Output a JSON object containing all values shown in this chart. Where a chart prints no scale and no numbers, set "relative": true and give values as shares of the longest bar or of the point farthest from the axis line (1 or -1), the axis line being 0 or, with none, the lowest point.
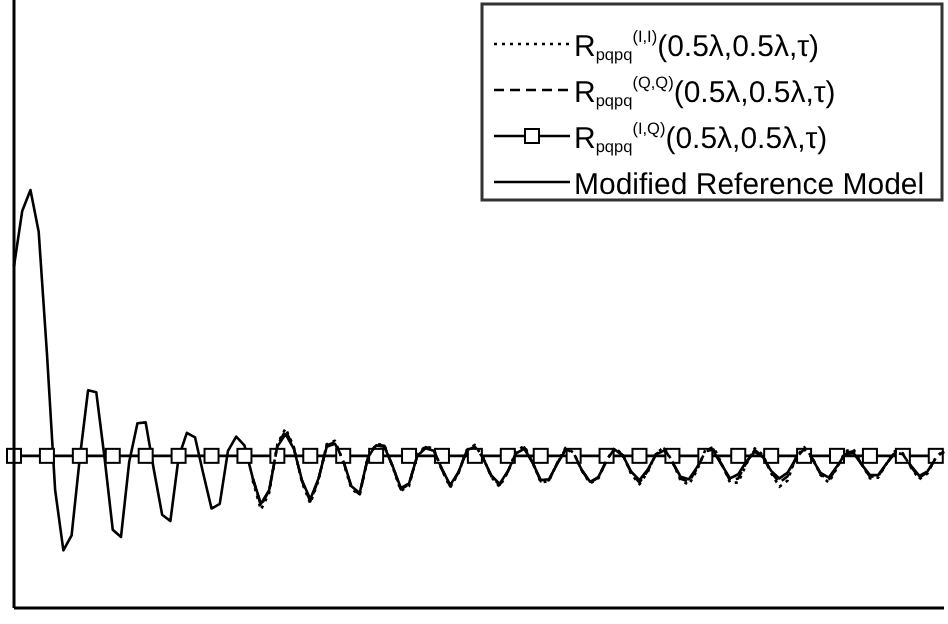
{
  "chart_data": {
    "type": "line",
    "relative": true,
    "legend": "top right",
    "categories": [
      null,
      null,
      null,
      null,
      null,
      null,
      null,
      null,
      null,
      null,
      null,
      null,
      null,
      null,
      null,
      null,
      null,
      null,
      null,
      null,
      null,
      null,
      null,
      null,
      null,
      null,
      null,
      null,
      null,
      null,
      null,
      null,
      null,
      null,
      null,
      null,
      null,
      null,
      null,
      null,
      null,
      null,
      null,
      null,
      null,
      null,
      null,
      null,
      null,
      null,
      null,
      null,
      null,
      null,
      null,
      null,
      null,
      null,
      null,
      null,
      null,
      null,
      null,
      null,
      null,
      null,
      null,
      null,
      null,
      null,
      null,
      null,
      null,
      null,
      null,
      null,
      null,
      null,
      null,
      null,
      null,
      null,
      null,
      null,
      null,
      null,
      null,
      null,
      null,
      null,
      null,
      null,
      null,
      null,
      null,
      null,
      null,
      null,
      null,
      null,
      null,
      null,
      null,
      null,
      null,
      null,
      null,
      null,
      null,
      null,
      null,
      null,
      null,
      null
    ],
    "series": [
      {
        "name": "R$_{pqpq}$$^{(I,I)}$(0.5λ,0.5λ,τ)",
        "color": "#000000",
        "line_style": "dotted",
        "marker": "none",
        "values": [
          null,
          null,
          null,
          null,
          null,
          null,
          null,
          null,
          null,
          null,
          null,
          null,
          null,
          null,
          null,
          null,
          null,
          null,
          null,
          null,
          null,
          null,
          null,
          null,
          null,
          null,
          null,
          null,
          null,
          0.305,
          0.235,
          0.275,
          0.392,
          0.43,
          0.385,
          0.3,
          0.25,
          0.305,
          0.392,
          0.4,
          0.35,
          0.285,
          0.27,
          0.36,
          0.392,
          0.39,
          0.338,
          0.28,
          0.292,
          0.366,
          0.388,
          0.38,
          0.33,
          0.288,
          0.322,
          0.378,
          0.39,
          0.36,
          0.313,
          0.29,
          0.325,
          0.375,
          0.388,
          0.35,
          0.3,
          0.304,
          0.347,
          0.383,
          0.372,
          0.328,
          0.298,
          0.31,
          0.354,
          0.384,
          0.366,
          0.32,
          0.296,
          0.325,
          0.37,
          0.385,
          0.35,
          0.305,
          0.295,
          0.33,
          0.378,
          0.385,
          0.345,
          0.3,
          0.3,
          0.345,
          0.382,
          0.366,
          0.322,
          0.29,
          0.305,
          0.36,
          0.385,
          0.36,
          0.318,
          0.3,
          0.335,
          0.375,
          0.38,
          0.345,
          0.31,
          0.312,
          0.345,
          0.375,
          0.37,
          0.336,
          0.308,
          0.322,
          0.36,
          0.378
        ]
      },
      {
        "name": "R$_{pqpq}$$^{(Q,Q)}$(0.5λ,0.5λ,τ)",
        "color": "#000000",
        "line_style": "dashed",
        "marker": "none",
        "values": [
          null,
          null,
          null,
          null,
          null,
          null,
          null,
          null,
          null,
          null,
          null,
          null,
          null,
          null,
          null,
          null,
          null,
          null,
          null,
          null,
          null,
          null,
          null,
          null,
          null,
          null,
          null,
          null,
          null,
          0.31,
          0.245,
          0.28,
          0.388,
          0.425,
          0.383,
          0.303,
          0.255,
          0.308,
          0.389,
          0.397,
          0.352,
          0.288,
          0.272,
          0.36,
          0.391,
          0.388,
          0.339,
          0.284,
          0.296,
          0.365,
          0.385,
          0.378,
          0.331,
          0.291,
          0.324,
          0.377,
          0.386,
          0.359,
          0.315,
          0.294,
          0.326,
          0.372,
          0.384,
          0.349,
          0.303,
          0.306,
          0.346,
          0.38,
          0.371,
          0.329,
          0.3,
          0.312,
          0.353,
          0.382,
          0.365,
          0.323,
          0.3,
          0.328,
          0.368,
          0.381,
          0.35,
          0.309,
          0.302,
          0.334,
          0.375,
          0.379,
          0.343,
          0.305,
          0.31,
          0.348,
          0.378,
          0.363,
          0.325,
          0.3,
          0.315,
          0.358,
          0.38,
          0.358,
          0.32,
          0.306,
          0.337,
          0.371,
          0.375,
          0.344,
          0.314,
          0.315,
          0.345,
          0.372,
          0.368,
          0.338,
          0.312,
          0.325,
          0.359,
          0.375
        ]
      },
      {
        "name": "R$_{pqpq}$$^{(I,Q)}$(0.5λ,0.5λ,τ)",
        "color": "#000000",
        "line_style": "solid",
        "marker": "square",
        "values": [
          0.364,
          null,
          null,
          null,
          0.364,
          null,
          null,
          null,
          0.364,
          null,
          null,
          null,
          0.364,
          null,
          null,
          null,
          0.364,
          null,
          null,
          null,
          0.364,
          null,
          null,
          null,
          0.364,
          null,
          null,
          null,
          0.364,
          null,
          null,
          null,
          0.364,
          null,
          null,
          null,
          0.364,
          null,
          null,
          null,
          0.364,
          null,
          null,
          null,
          0.364,
          null,
          null,
          null,
          0.364,
          null,
          null,
          null,
          0.364,
          null,
          null,
          null,
          0.364,
          null,
          null,
          null,
          0.364,
          null,
          null,
          null,
          0.364,
          null,
          null,
          null,
          0.364,
          null,
          null,
          null,
          0.364,
          null,
          null,
          null,
          0.364,
          null,
          null,
          null,
          0.364,
          null,
          null,
          null,
          0.364,
          null,
          null,
          null,
          0.364,
          null,
          null,
          null,
          0.364,
          null,
          null,
          null,
          0.364,
          null,
          null,
          null,
          0.364,
          null,
          null,
          null,
          0.364,
          null,
          null,
          null,
          0.364,
          null,
          null,
          null,
          0.364,
          null
        ]
      },
      {
        "name": "Modified Reference Model",
        "color": "#000000",
        "line_style": "solid",
        "marker": "none",
        "values": [
          0.818,
          0.95,
          1.0,
          0.9,
          0.61,
          0.282,
          0.138,
          0.174,
          0.36,
          0.521,
          0.516,
          0.36,
          0.187,
          0.17,
          0.35,
          0.442,
          0.444,
          0.33,
          0.223,
          0.208,
          0.36,
          0.419,
          0.408,
          0.321,
          0.238,
          0.249,
          0.376,
          0.41,
          0.389,
          0.312,
          0.249,
          0.282,
          0.386,
          0.416,
          0.381,
          0.305,
          0.26,
          0.31,
          0.386,
          0.393,
          0.353,
          0.291,
          0.275,
          0.36,
          0.389,
          0.386,
          0.34,
          0.287,
          0.298,
          0.364,
          0.382,
          0.376,
          0.333,
          0.294,
          0.325,
          0.375,
          0.383,
          0.358,
          0.317,
          0.297,
          0.327,
          0.37,
          0.381,
          0.348,
          0.306,
          0.308,
          0.345,
          0.377,
          0.369,
          0.33,
          0.302,
          0.313,
          0.352,
          0.379,
          0.364,
          0.326,
          0.306,
          0.331,
          0.367,
          0.377,
          0.349,
          0.314,
          0.308,
          0.337,
          0.372,
          0.374,
          0.342,
          0.31,
          0.32,
          0.351,
          0.374,
          0.361,
          0.328,
          0.31,
          0.324,
          0.357,
          0.374,
          0.356,
          0.323,
          0.312,
          0.339,
          0.368,
          0.371,
          0.343,
          0.318,
          0.318,
          0.345,
          0.37,
          0.367,
          0.34,
          0.316,
          0.327,
          0.358,
          0.373
        ]
      }
    ]
  }
}
